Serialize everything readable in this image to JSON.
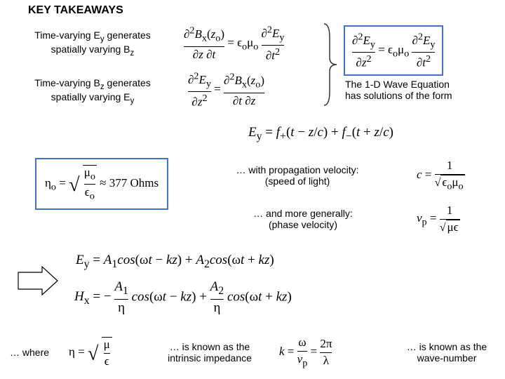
{
  "title": "KEY TAKEAWAYS",
  "left": {
    "takeaway1a": "Time-varying E",
    "takeaway1b": " generates",
    "takeaway1c": "spatially varying B",
    "takeaway2a": "Time-varying B",
    "takeaway2b": " generates",
    "takeaway2c": "spatially varying E",
    "sub_y": "y",
    "sub_z": "z"
  },
  "right": {
    "wave1": "The 1-D Wave Equation",
    "wave2": "has solutions of the form",
    "prop1": "… with propagation velocity:",
    "prop2": "(speed of light)",
    "phase1": "… and more generally:",
    "phase2": "(phase velocity)",
    "imp1": "… is known as the",
    "imp2": "intrinsic impedance",
    "wn1": "… is known as the",
    "wn2": "wave-number",
    "where": "… where"
  },
  "eq": {
    "d2Bx_top": "∂<sup>2</sup><span class='it'>B</span><sub>x</sub>(<span class='it'>z</span><sub>o</sub>)",
    "dzdt": "∂<span class='it'>z</span> ∂<span class='it'>t</span>",
    "eq_sign": " = ",
    "emu": "ϵ<sub>o</sub>μ<sub>o</sub>",
    "d2Ey_top": "∂<sup>2</sup><span class='it'>E</span><sub>y</sub>",
    "dt2": "∂<span class='it'>t</span><sup>2</sup>",
    "dz2": "∂<span class='it'>z</span><sup>2</sup>",
    "d2Bx_top2": "∂<sup>2</sup><span class='it'>B</span><sub>x</sub>(<span class='it'>z</span><sub>o</sub>)",
    "dtdz": "∂<span class='it'>t</span> ∂<span class='it'>z</span>",
    "eta_o": "η<sub>o</sub> = ",
    "sqrt_mu_e": "μ<sub>o</sub>",
    "eps_o": "ϵ<sub>o</sub>",
    "approx377": " ≈ 377 Ohms",
    "Ey_sol": "<span class='it'>E</span><sub>y</sub> = <span class='it'>f</span><sub>+</sub>(<span class='it'>t</span> − <span class='it'>z</span>/<span class='it'>c</span>) + <span class='it'>f</span><sub>−</sub>(<span class='it'>t</span> + <span class='it'>z</span>/<span class='it'>c</span>)",
    "c_eq_1": "<span class='it'>c</span> = ",
    "one": "1",
    "sqrt_emu": "ϵ<sub>o</sub>μ<sub>o</sub>",
    "vp_eq": "<span class='it'>v</span><sub>p</sub> = ",
    "sqrt_mueps": "μϵ",
    "Ey_cos": "<span class='it'>E</span><sub>y</sub> = <span class='it'>A</span><sub>1</sub><span class='it'>cos</span>(ω<span class='it'>t</span> − <span class='it'>kz</span>) + <span class='it'>A</span><sub>2</sub><span class='it'>cos</span>(ω<span class='it'>t</span> + <span class='it'>kz</span>)",
    "Hx_cos1": "<span class='it'>H</span><sub>x</sub> = −",
    "A1_eta": "<span class='it'>A</span><sub>1</sub>",
    "eta": "η",
    "cos_minus": "<span class='it'>cos</span>(ω<span class='it'>t</span> − <span class='it'>kz</span>) + ",
    "A2_eta": "<span class='it'>A</span><sub>2</sub>",
    "cos_plus": "<span class='it'>cos</span>(ω<span class='it'>t</span> + <span class='it'>kz</span>)",
    "eta_eq": "η = ",
    "mu": "μ",
    "eps": "ϵ",
    "k_eq": "<span class='it'>k</span> = ",
    "omega": "ω",
    "vp": "<span class='it'>v</span><sub>p</sub>",
    "twopi": "2π",
    "lambda": "λ"
  },
  "colors": {
    "boxBorder": "#4472c4",
    "brace": "#333333"
  }
}
